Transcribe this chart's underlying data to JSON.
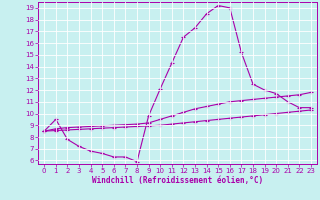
{
  "xlabel": "Windchill (Refroidissement éolien,°C)",
  "xlim": [
    -0.5,
    23.5
  ],
  "ylim": [
    5.7,
    19.5
  ],
  "xticks": [
    0,
    1,
    2,
    3,
    4,
    5,
    6,
    7,
    8,
    9,
    10,
    11,
    12,
    13,
    14,
    15,
    16,
    17,
    18,
    19,
    20,
    21,
    22,
    23
  ],
  "yticks": [
    6,
    7,
    8,
    9,
    10,
    11,
    12,
    13,
    14,
    15,
    16,
    17,
    18,
    19
  ],
  "bg_color": "#c8f0f0",
  "line_color": "#aa00aa",
  "grid_color": "#ffffff",
  "line1_x": [
    0,
    1,
    2,
    3,
    4,
    5,
    6,
    7,
    8,
    9,
    10,
    11,
    12,
    13,
    14,
    15,
    16,
    17,
    18,
    19,
    20,
    21,
    22,
    23
  ],
  "line1_y": [
    8.5,
    9.5,
    7.8,
    7.2,
    6.8,
    6.6,
    6.3,
    6.3,
    5.9,
    9.8,
    12.1,
    14.3,
    16.5,
    17.3,
    18.5,
    19.2,
    19.0,
    15.2,
    12.5,
    12.0,
    11.7,
    11.0,
    10.5,
    10.5
  ],
  "line2_x": [
    0,
    1,
    2,
    3,
    4,
    5,
    6,
    7,
    8,
    9,
    10,
    11,
    12,
    13,
    14,
    15,
    16,
    17,
    18,
    19,
    20,
    21,
    22,
    23
  ],
  "line2_y": [
    8.5,
    8.7,
    8.8,
    8.85,
    8.9,
    8.95,
    9.0,
    9.05,
    9.1,
    9.2,
    9.5,
    9.8,
    10.1,
    10.4,
    10.6,
    10.8,
    11.0,
    11.1,
    11.2,
    11.3,
    11.4,
    11.5,
    11.6,
    11.8
  ],
  "line3_x": [
    0,
    1,
    2,
    3,
    4,
    5,
    6,
    7,
    8,
    9,
    10,
    11,
    12,
    13,
    14,
    15,
    16,
    17,
    18,
    19,
    20,
    21,
    22,
    23
  ],
  "line3_y": [
    8.5,
    8.55,
    8.6,
    8.65,
    8.7,
    8.75,
    8.8,
    8.85,
    8.9,
    8.95,
    9.0,
    9.1,
    9.2,
    9.3,
    9.4,
    9.5,
    9.6,
    9.7,
    9.8,
    9.9,
    10.0,
    10.1,
    10.2,
    10.3
  ]
}
